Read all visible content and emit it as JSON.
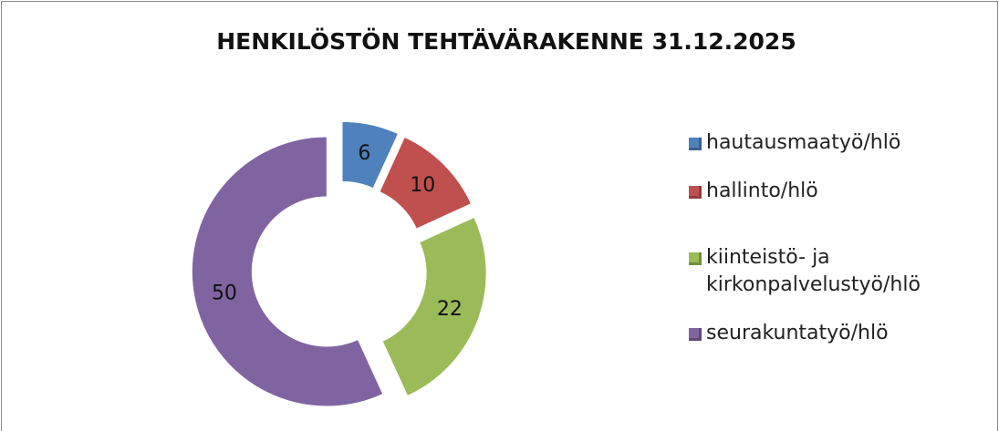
{
  "chart_data": {
    "type": "doughnut",
    "title": "HENKILÖSTÖN TEHTÄVÄRAKENNE 31.12.2025",
    "categories": [
      "hautausmaatyö/hlö",
      "hallinto/hlö",
      "kiinteistö- ja kirkonpalvelustyö/hlö",
      "seurakuntatyö/hlö"
    ],
    "values": [
      6,
      10,
      22,
      50
    ],
    "colors": [
      "#4f81bd",
      "#c0504d",
      "#9bbb59",
      "#8064a2"
    ],
    "legend": "right"
  }
}
